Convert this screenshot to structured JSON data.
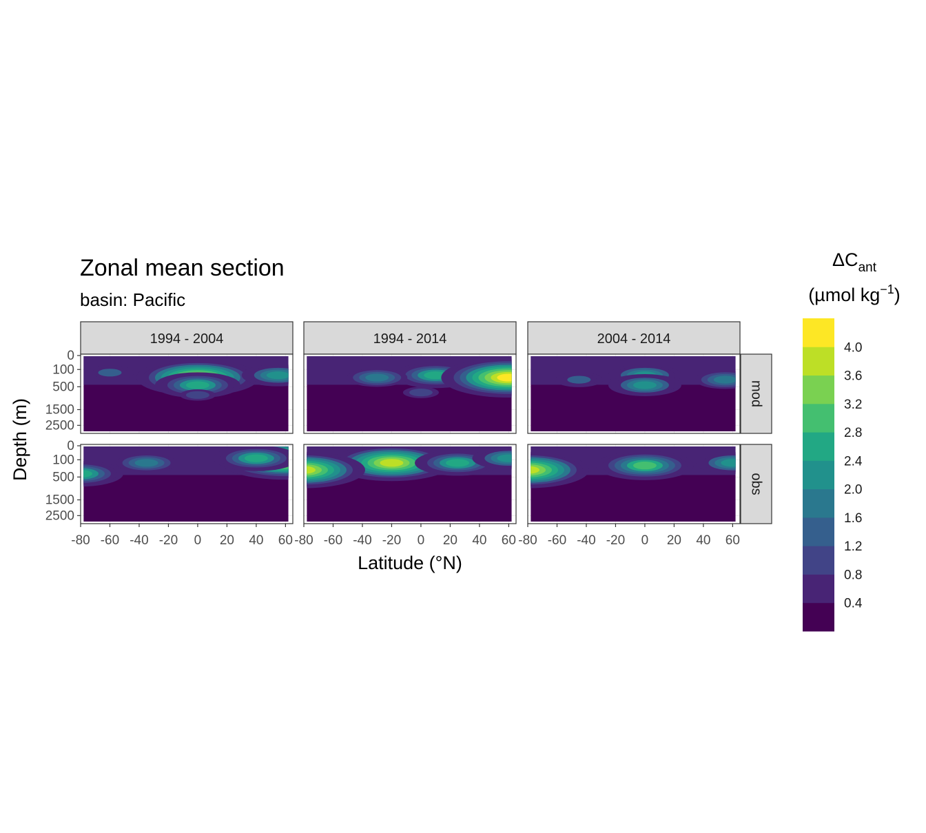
{
  "title": "Zonal mean section",
  "subtitle": "basin: Pacific",
  "chart_data": {
    "type": "heatmap",
    "title": "Zonal mean section",
    "subtitle": "basin: Pacific",
    "xlabel": "Latitude (°N)",
    "ylabel": "Depth (m)",
    "x_ticks": [
      -80,
      -60,
      -40,
      -20,
      0,
      20,
      40,
      60
    ],
    "y_ticks": [
      0,
      100,
      500,
      1500,
      2500
    ],
    "xlim": [
      -80,
      65
    ],
    "ylim": [
      3000,
      0
    ],
    "y_scale": "square-root (reversed)",
    "columns": [
      "1994 - 2004",
      "1994 - 2014",
      "2004 - 2014"
    ],
    "rows": [
      "mod",
      "obs"
    ],
    "legend": {
      "title_main": "ΔC",
      "title_sub": "ant",
      "title_unit": "(µmol kg",
      "title_unit_exp": "−1",
      "title_unit_close": ")",
      "labels": [
        "4.0",
        "3.6",
        "3.2",
        "2.8",
        "2.4",
        "2.0",
        "1.6",
        "1.2",
        "0.8",
        "0.4"
      ],
      "breaks": [
        0,
        0.4,
        0.8,
        1.2,
        1.6,
        2.0,
        2.4,
        2.8,
        3.2,
        3.6,
        4.0,
        4.4
      ],
      "colors": [
        "#440154",
        "#482475",
        "#414487",
        "#355f8d",
        "#2a788e",
        "#21918c",
        "#22a884",
        "#44bf70",
        "#7ad151",
        "#bddf26",
        "#fde725"
      ]
    },
    "panels": [
      {
        "column": "1994 - 2004",
        "row": "mod",
        "lat_range": [
          -78,
          62
        ],
        "features": [
          {
            "lat": 0,
            "depth": 250,
            "value": 3.6
          },
          {
            "lat": 0,
            "depth": 450,
            "value": 2.4
          },
          {
            "lat": -60,
            "depth": 150,
            "value": 1.2
          },
          {
            "lat": 55,
            "depth": 200,
            "value": 2.0
          },
          {
            "lat": 0,
            "depth": 800,
            "value": 0.8
          }
        ]
      },
      {
        "column": "1994 - 2014",
        "row": "mod",
        "lat_range": [
          -78,
          62
        ],
        "features": [
          {
            "lat": 10,
            "depth": 200,
            "value": 2.4
          },
          {
            "lat": 60,
            "depth": 250,
            "value": 4.0
          },
          {
            "lat": -30,
            "depth": 250,
            "value": 1.6
          },
          {
            "lat": 0,
            "depth": 700,
            "value": 0.8
          }
        ]
      },
      {
        "column": "2004 - 2014",
        "row": "mod",
        "lat_range": [
          -78,
          62
        ],
        "features": [
          {
            "lat": 0,
            "depth": 200,
            "value": 2.0
          },
          {
            "lat": 0,
            "depth": 450,
            "value": 2.0
          },
          {
            "lat": 55,
            "depth": 300,
            "value": 1.6
          },
          {
            "lat": -45,
            "depth": 300,
            "value": 1.2
          }
        ]
      },
      {
        "column": "1994 - 2004",
        "row": "obs",
        "lat_range": [
          -78,
          62
        ],
        "features": [
          {
            "lat": 60,
            "depth": 100,
            "value": 4.0
          },
          {
            "lat": 40,
            "depth": 80,
            "value": 2.4
          },
          {
            "lat": -35,
            "depth": 150,
            "value": 1.6
          },
          {
            "lat": -80,
            "depth": 400,
            "value": 2.4
          }
        ]
      },
      {
        "column": "1994 - 2014",
        "row": "obs",
        "lat_range": [
          -78,
          62
        ],
        "features": [
          {
            "lat": -20,
            "depth": 150,
            "value": 3.6
          },
          {
            "lat": 25,
            "depth": 150,
            "value": 2.4
          },
          {
            "lat": -80,
            "depth": 300,
            "value": 3.6
          },
          {
            "lat": 60,
            "depth": 80,
            "value": 2.0
          }
        ]
      },
      {
        "column": "2004 - 2014",
        "row": "obs",
        "lat_range": [
          -78,
          62
        ],
        "features": [
          {
            "lat": 0,
            "depth": 200,
            "value": 2.8
          },
          {
            "lat": -80,
            "depth": 300,
            "value": 3.6
          },
          {
            "lat": 60,
            "depth": 150,
            "value": 2.0
          }
        ]
      }
    ]
  }
}
